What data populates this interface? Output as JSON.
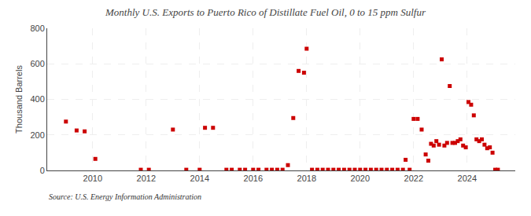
{
  "chart_data": {
    "type": "scatter",
    "title": "Monthly U.S. Exports to Puerto Rico of Distillate Fuel Oil, 0 to 15 ppm Sulfur",
    "ylabel": "Thousand Barrels",
    "annotation": "Source: U.S. Energy Information Administration",
    "color": "#cc0000",
    "marker": "square",
    "grid": true,
    "xlim": [
      2008.3,
      2025.8
    ],
    "xticks": [
      2010,
      2012,
      2014,
      2016,
      2018,
      2020,
      2022,
      2024
    ],
    "ylim": [
      0,
      800
    ],
    "yticks": [
      0,
      200,
      400,
      600,
      800
    ],
    "x": [
      2009.0,
      2009.4,
      2009.7,
      2010.1,
      2011.8,
      2012.1,
      2013.0,
      2013.5,
      2014.0,
      2014.2,
      2014.5,
      2015.0,
      2015.2,
      2015.5,
      2015.7,
      2016.0,
      2016.2,
      2016.5,
      2016.7,
      2016.9,
      2017.1,
      2017.3,
      2017.5,
      2017.7,
      2017.9,
      2018.0,
      2018.2,
      2018.4,
      2018.6,
      2018.8,
      2019.0,
      2019.2,
      2019.4,
      2019.6,
      2019.8,
      2020.0,
      2020.2,
      2020.4,
      2020.6,
      2020.8,
      2021.0,
      2021.2,
      2021.4,
      2021.6,
      2021.7,
      2021.85,
      2022.0,
      2022.15,
      2022.3,
      2022.45,
      2022.55,
      2022.65,
      2022.75,
      2022.85,
      2022.95,
      2023.05,
      2023.15,
      2023.25,
      2023.35,
      2023.45,
      2023.55,
      2023.65,
      2023.75,
      2023.85,
      2023.95,
      2024.05,
      2024.15,
      2024.25,
      2024.35,
      2024.45,
      2024.55,
      2024.65,
      2024.75,
      2024.85,
      2024.95,
      2025.05,
      2025.15
    ],
    "values": [
      275,
      225,
      220,
      65,
      4,
      4,
      230,
      4,
      4,
      240,
      240,
      4,
      4,
      4,
      4,
      4,
      4,
      4,
      4,
      4,
      4,
      30,
      295,
      560,
      550,
      685,
      4,
      4,
      4,
      4,
      4,
      4,
      4,
      4,
      4,
      4,
      4,
      4,
      4,
      4,
      4,
      4,
      4,
      4,
      60,
      4,
      290,
      290,
      230,
      90,
      55,
      150,
      140,
      165,
      145,
      625,
      140,
      155,
      475,
      155,
      155,
      165,
      175,
      140,
      130,
      385,
      370,
      310,
      175,
      165,
      175,
      145,
      125,
      130,
      100,
      4,
      4
    ]
  }
}
